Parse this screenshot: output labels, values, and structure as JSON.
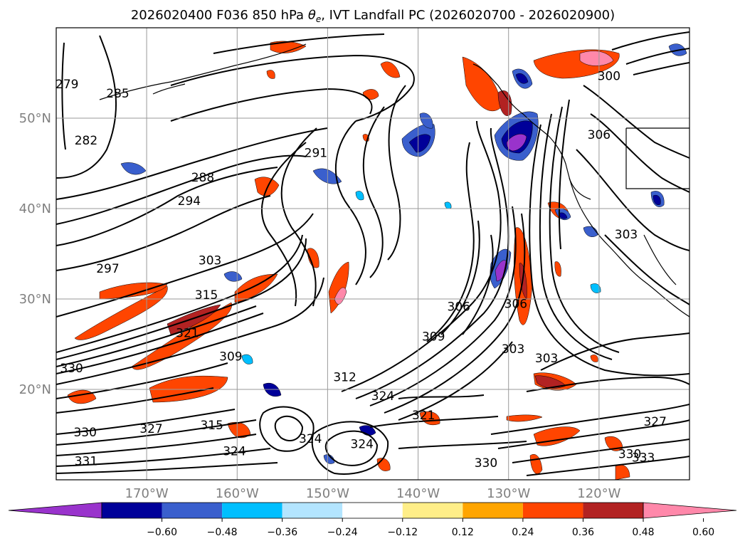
{
  "chart_data": {
    "type": "contour-map",
    "title": "2026020400 F036 850 hPa θe, IVT Landfall PC (2026020700 - 2026020900)",
    "title_parts": {
      "prefix": "2026020400 F036 850 hPa ",
      "theta": "θ",
      "sub": "e",
      "suffix": ", IVT Landfall PC (2026020700 - 2026020900)"
    },
    "lon_range": [
      180,
      110
    ],
    "lat_range": [
      10,
      60
    ],
    "grid": true,
    "lat_ticks": [
      {
        "value": 20,
        "label": "20°N"
      },
      {
        "value": 30,
        "label": "30°N"
      },
      {
        "value": 40,
        "label": "40°N"
      },
      {
        "value": 50,
        "label": "50°N"
      }
    ],
    "lon_ticks": [
      {
        "value": 170,
        "label": "170°W"
      },
      {
        "value": 160,
        "label": "160°W"
      },
      {
        "value": 150,
        "label": "150°W"
      },
      {
        "value": 140,
        "label": "140°W"
      },
      {
        "value": 130,
        "label": "130°W"
      },
      {
        "value": 120,
        "label": "120°W"
      }
    ],
    "colorbar": {
      "ticks": [
        "−0.60",
        "−0.48",
        "−0.36",
        "−0.24",
        "−0.12",
        "0.12",
        "0.24",
        "0.36",
        "0.48",
        "0.60"
      ],
      "colors": [
        "#9933cc",
        "#000099",
        "#3a5fcd",
        "#00bfff",
        "#b3e5ff",
        "#ffffff",
        "#ffee88",
        "#ffa500",
        "#ff4500",
        "#b22222",
        "#ff88aa"
      ],
      "extend": "both"
    },
    "contour_labels": [
      {
        "text": "279",
        "lon": 178.8,
        "lat": 53.3
      },
      {
        "text": "285",
        "lon": 173.2,
        "lat": 52.3
      },
      {
        "text": "282",
        "lon": 176.7,
        "lat": 47.1
      },
      {
        "text": "291",
        "lon": 151.3,
        "lat": 45.7
      },
      {
        "text": "288",
        "lon": 163.8,
        "lat": 43.0
      },
      {
        "text": "294",
        "lon": 165.3,
        "lat": 40.4
      },
      {
        "text": "297",
        "lon": 174.3,
        "lat": 32.9
      },
      {
        "text": "303",
        "lon": 163.0,
        "lat": 33.8
      },
      {
        "text": "315",
        "lon": 163.4,
        "lat": 30.0
      },
      {
        "text": "321",
        "lon": 165.5,
        "lat": 25.8
      },
      {
        "text": "330",
        "lon": 178.3,
        "lat": 21.9
      },
      {
        "text": "309",
        "lon": 160.7,
        "lat": 23.2
      },
      {
        "text": "312",
        "lon": 148.1,
        "lat": 20.9
      },
      {
        "text": "324",
        "lon": 143.9,
        "lat": 18.8
      },
      {
        "text": "321",
        "lon": 139.4,
        "lat": 16.7
      },
      {
        "text": "327",
        "lon": 169.5,
        "lat": 15.2
      },
      {
        "text": "315",
        "lon": 162.8,
        "lat": 15.6
      },
      {
        "text": "324",
        "lon": 151.9,
        "lat": 14.1
      },
      {
        "text": "324",
        "lon": 146.2,
        "lat": 13.5
      },
      {
        "text": "330",
        "lon": 176.8,
        "lat": 14.8
      },
      {
        "text": "324",
        "lon": 160.3,
        "lat": 12.7
      },
      {
        "text": "330",
        "lon": 132.5,
        "lat": 11.4
      },
      {
        "text": "306",
        "lon": 135.5,
        "lat": 28.7
      },
      {
        "text": "309",
        "lon": 138.3,
        "lat": 25.4
      },
      {
        "text": "306",
        "lon": 129.2,
        "lat": 29.0
      },
      {
        "text": "303",
        "lon": 129.5,
        "lat": 24.0
      },
      {
        "text": "303",
        "lon": 125.8,
        "lat": 23.0
      },
      {
        "text": "303",
        "lon": 117.0,
        "lat": 36.7
      },
      {
        "text": "306",
        "lon": 120.0,
        "lat": 47.7
      },
      {
        "text": "300",
        "lon": 118.9,
        "lat": 54.2
      },
      {
        "text": "327",
        "lon": 113.8,
        "lat": 16.0
      },
      {
        "text": "330",
        "lon": 116.6,
        "lat": 12.4
      },
      {
        "text": "333",
        "lon": 115.1,
        "lat": 12.0
      },
      {
        "text": "331",
        "lon": 176.7,
        "lat": 11.6
      }
    ]
  }
}
